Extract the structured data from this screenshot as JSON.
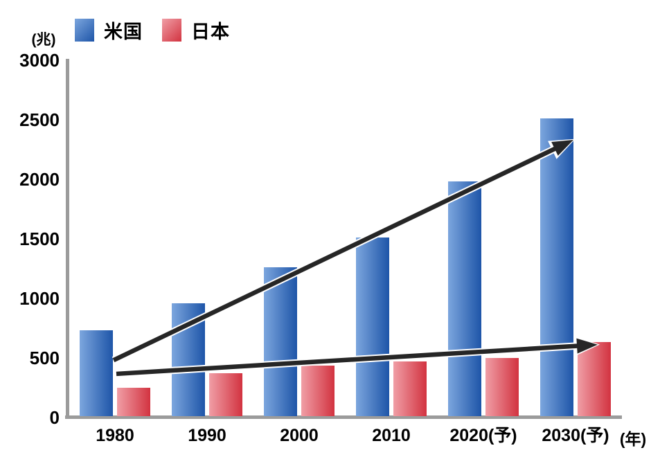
{
  "chart_data": {
    "type": "bar",
    "title": "",
    "unit_label": "(兆)",
    "x_axis_unit_label": "(年)",
    "categories": [
      "1980",
      "1990",
      "2000",
      "2010",
      "2020(予)",
      "2030(予)"
    ],
    "series": [
      {
        "key": "usa",
        "name": "米国",
        "values": [
          720,
          950,
          1250,
          1500,
          1970,
          2500
        ],
        "gradient": {
          "light": "#7CA6DE",
          "dark": "#1E55A8"
        }
      },
      {
        "key": "japan",
        "name": "日本",
        "values": [
          240,
          360,
          425,
          460,
          490,
          620
        ],
        "gradient": {
          "light": "#F09EA6",
          "dark": "#D23340"
        }
      }
    ],
    "ylim": [
      0,
      3000
    ],
    "ytick_step": 500,
    "yticks": [
      0,
      500,
      1000,
      1500,
      2000,
      2500,
      3000
    ],
    "grid": false,
    "legend_position": "top-left",
    "annotations": {
      "arrows": [
        {
          "name": "usa-trend-arrow",
          "from": {
            "category": "1980",
            "value": 470
          },
          "to": {
            "category": "2030(予)",
            "value": 2320
          }
        },
        {
          "name": "japan-trend-arrow",
          "from": {
            "category": "1980",
            "value": 355
          },
          "to": {
            "category": "2030(予)",
            "value": 600
          }
        }
      ]
    },
    "colors": {
      "axis": "#9b9b9b",
      "arrow": "#262626",
      "arrow_casing": "#ffffff",
      "text": "#000000"
    }
  }
}
